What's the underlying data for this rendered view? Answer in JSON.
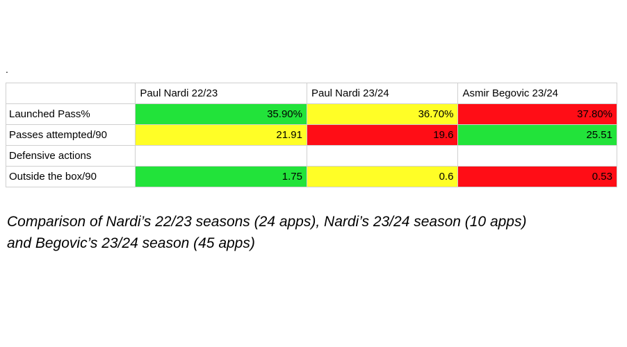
{
  "mark": ".",
  "colors": {
    "green": "#22e33a",
    "yellow": "#fffe26",
    "red": "#ff0d16",
    "border": "#cfcfcf"
  },
  "chart_data": {
    "type": "table",
    "columns": [
      "Paul Nardi 22/23",
      "Paul Nardi 23/24",
      "Asmir Begovic 23/24"
    ],
    "rows": [
      {
        "label": "Launched Pass%",
        "values": [
          "35.90%",
          "36.70%",
          "37.80%"
        ],
        "colors": [
          "green",
          "yellow",
          "red"
        ]
      },
      {
        "label": "Passes attempted/90",
        "values": [
          "21.91",
          "19.6",
          "25.51"
        ],
        "colors": [
          "yellow",
          "red",
          "green"
        ]
      },
      {
        "label": "Defensive actions",
        "values": [
          "",
          "",
          ""
        ],
        "colors": [
          "none",
          "none",
          "none"
        ]
      },
      {
        "label": "Outside the box/90",
        "values": [
          "1.75",
          "0.6",
          "0.53"
        ],
        "colors": [
          "green",
          "yellow",
          "red"
        ]
      }
    ]
  },
  "caption": {
    "line1": "Comparison of Nardi’s 22/23 seasons (24 apps), Nardi’s 23/24 season (10 apps)",
    "line2": "and Begovic’s 23/24 season (45 apps)"
  }
}
